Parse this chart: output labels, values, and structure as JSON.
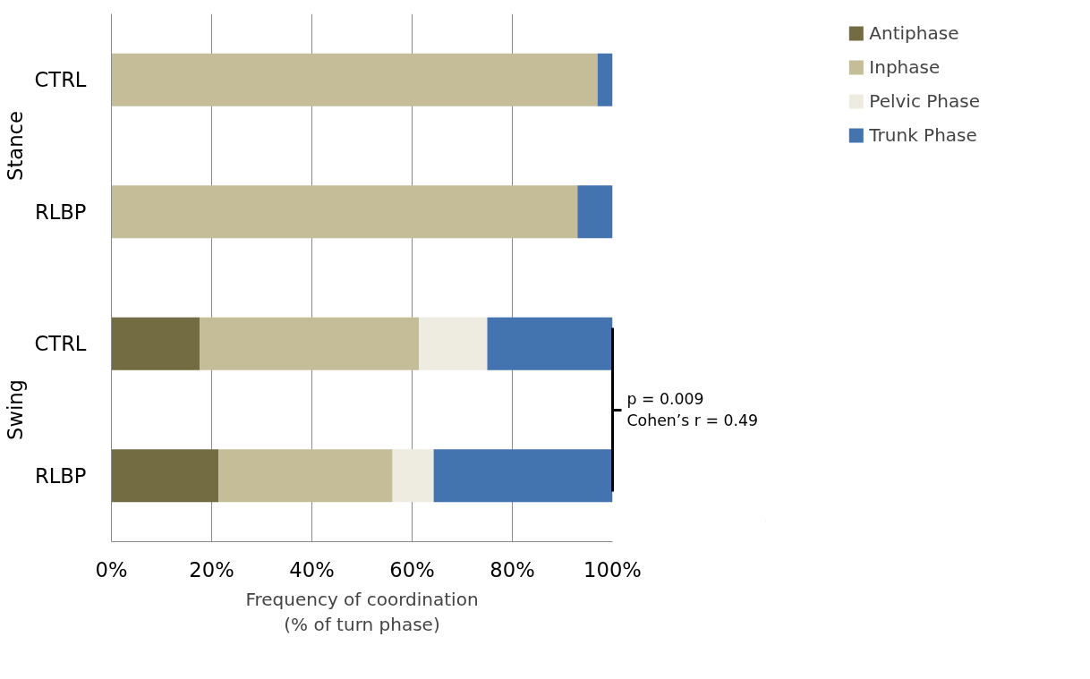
{
  "chart_data": {
    "type": "bar",
    "orientation": "horizontal",
    "stacked": true,
    "categories": [
      "CTRL",
      "RLBP",
      "CTRL",
      "RLBP"
    ],
    "series": [
      {
        "name": "Antiphase",
        "color": "#736c43",
        "values": [
          0,
          0,
          17.6,
          21.4
        ]
      },
      {
        "name": "Inphase",
        "color": "#c4bd97",
        "values": [
          97,
          93,
          43.8,
          34.7
        ]
      },
      {
        "name": "Pelvic Phase",
        "color": "#eeece1",
        "values": [
          0,
          0,
          13.6,
          8.2
        ]
      },
      {
        "name": "Trunk Phase",
        "color": "#4374b0",
        "values": [
          3,
          7,
          25.0,
          35.7
        ]
      }
    ],
    "xlim": [
      0,
      100
    ],
    "xticks": [
      {
        "value": 0,
        "label": "0%"
      },
      {
        "value": 20,
        "label": "20%"
      },
      {
        "value": 40,
        "label": "40%"
      },
      {
        "value": 60,
        "label": "60%"
      },
      {
        "value": 80,
        "label": "80%"
      },
      {
        "value": 100,
        "label": "100%"
      }
    ],
    "xlabel": "Frequency of coordination\n(% of turn phase)",
    "annotations": [
      "Stance",
      "Swing",
      "p = 0.009\nCohen’s r =  0.49"
    ],
    "grid": "x",
    "legend": "top right"
  }
}
